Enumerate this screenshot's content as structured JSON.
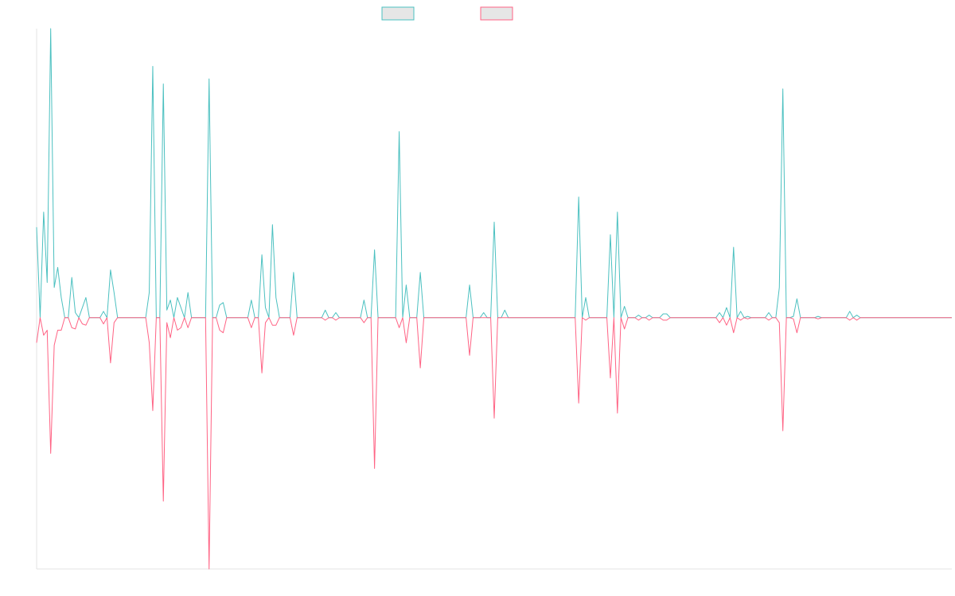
{
  "chart_data": {
    "type": "line",
    "title": "",
    "xlabel": "",
    "ylabel": "",
    "grid": false,
    "legend_position": "top-center",
    "ylim": [
      -1,
      1.15
    ],
    "series": [
      {
        "color": "#4bc0c0",
        "fill": "#e6e6e6",
        "values": [
          0.36,
          0,
          0.42,
          0.14,
          1.15,
          0.12,
          0.2,
          0.08,
          0,
          0,
          0.16,
          0.02,
          0,
          0.04,
          0.08,
          0,
          0,
          0,
          0,
          0.025,
          0,
          0.19,
          0.1,
          0,
          0,
          0,
          0,
          0,
          0,
          0,
          0,
          0,
          0.1,
          1.0,
          0,
          0,
          0.93,
          0.03,
          0.07,
          0,
          0.08,
          0.04,
          0,
          0.1,
          0,
          0,
          0,
          0,
          0,
          0.95,
          0,
          0,
          0.05,
          0.06,
          0,
          0,
          0,
          0,
          0,
          0,
          0,
          0.07,
          0,
          0,
          0.25,
          0.04,
          0,
          0.37,
          0.08,
          0,
          0,
          0,
          0,
          0.18,
          0,
          0,
          0,
          0,
          0,
          0,
          0,
          0,
          0.03,
          0,
          0,
          0.02,
          0,
          0,
          0,
          0,
          0,
          0,
          0,
          0.07,
          0,
          0,
          0.27,
          0,
          0,
          0,
          0,
          0,
          0,
          0.74,
          0,
          0.13,
          0,
          0,
          0,
          0.18,
          0,
          0,
          0,
          0,
          0,
          0,
          0,
          0,
          0,
          0,
          0,
          0,
          0,
          0.13,
          0,
          0,
          0,
          0.02,
          0,
          0,
          0.38,
          0,
          0,
          0.03,
          0,
          0,
          0,
          0,
          0,
          0,
          0,
          0,
          0,
          0,
          0,
          0,
          0,
          0,
          0,
          0,
          0,
          0,
          0,
          0,
          0.48,
          0,
          0.08,
          0,
          0,
          0,
          0,
          0,
          0,
          0.33,
          0,
          0.42,
          0,
          0.045,
          0,
          0,
          0,
          0.01,
          0,
          0,
          0.01,
          0,
          0,
          0,
          0.015,
          0.015,
          0,
          0,
          0,
          0,
          0,
          0,
          0,
          0,
          0,
          0,
          0,
          0,
          0,
          0,
          0.02,
          0,
          0.04,
          0,
          0.28,
          0,
          0.025,
          0,
          0.005,
          0,
          0,
          0,
          0,
          0,
          0.02,
          0,
          0,
          0.12,
          0.91,
          0,
          0,
          0.005,
          0.075,
          0,
          0,
          0,
          0,
          0,
          0.005,
          0,
          0,
          0,
          0,
          0,
          0,
          0,
          0,
          0.025,
          0,
          0.01,
          0,
          0,
          0,
          0,
          0,
          0,
          0,
          0,
          0,
          0,
          0,
          0,
          0,
          0,
          0,
          0,
          0,
          0,
          0,
          0,
          0,
          0,
          0,
          0,
          0,
          0,
          0
        ]
      },
      {
        "color": "#ff6384",
        "fill": "#e6e6e6",
        "values": [
          -0.1,
          0,
          -0.07,
          -0.05,
          -0.54,
          -0.11,
          -0.05,
          -0.05,
          0,
          0,
          -0.04,
          -0.045,
          0,
          -0.025,
          -0.03,
          0,
          0,
          0,
          0,
          -0.025,
          0,
          -0.18,
          -0.02,
          0,
          0,
          0,
          0,
          0,
          0,
          0,
          0,
          0,
          -0.1,
          -0.37,
          0,
          0,
          -0.73,
          -0.02,
          -0.08,
          0,
          -0.05,
          -0.04,
          0,
          -0.04,
          0,
          0,
          0,
          0,
          0,
          -1.0,
          0,
          0,
          -0.05,
          -0.06,
          0,
          0,
          0,
          0,
          0,
          0,
          0,
          -0.04,
          0,
          0,
          -0.22,
          -0.02,
          0,
          -0.03,
          -0.03,
          0,
          0,
          0,
          0,
          -0.07,
          0,
          0,
          0,
          0,
          0,
          0,
          0,
          0,
          -0.01,
          0,
          0,
          -0.01,
          0,
          0,
          0,
          0,
          0,
          0,
          0,
          -0.02,
          0,
          0,
          -0.6,
          0,
          0,
          0,
          0,
          0,
          0,
          -0.04,
          0,
          -0.1,
          0,
          0,
          0,
          -0.2,
          0,
          0,
          0,
          0,
          0,
          0,
          0,
          0,
          0,
          0,
          0,
          0,
          0,
          -0.15,
          0,
          0,
          0,
          0,
          0,
          0,
          -0.4,
          0,
          0,
          0,
          0,
          0,
          0,
          0,
          0,
          0,
          0,
          0,
          0,
          0,
          0,
          0,
          0,
          0,
          0,
          0,
          0,
          0,
          0,
          0,
          -0.34,
          0,
          -0.01,
          0,
          0,
          0,
          0,
          0,
          0,
          -0.24,
          0,
          -0.38,
          0,
          -0.045,
          0,
          0,
          0,
          -0.01,
          0,
          0,
          -0.01,
          0,
          0,
          0,
          -0.01,
          -0.01,
          0,
          0,
          0,
          0,
          0,
          0,
          0,
          0,
          0,
          0,
          0,
          0,
          0,
          0,
          -0.02,
          0,
          -0.03,
          0,
          -0.06,
          0,
          -0.01,
          0,
          -0.005,
          0,
          0,
          0,
          0,
          0,
          -0.01,
          0,
          0,
          -0.02,
          -0.45,
          0,
          0,
          -0.005,
          -0.06,
          0,
          0,
          0,
          0,
          0,
          -0.005,
          0,
          0,
          0,
          0,
          0,
          0,
          0,
          0,
          -0.01,
          0,
          -0.01,
          0,
          0,
          0,
          0,
          0,
          0,
          0,
          0,
          0,
          0,
          0,
          0,
          0,
          0,
          0,
          0,
          0,
          0,
          0,
          0,
          0,
          0,
          0,
          0,
          0,
          0,
          0
        ]
      }
    ]
  }
}
